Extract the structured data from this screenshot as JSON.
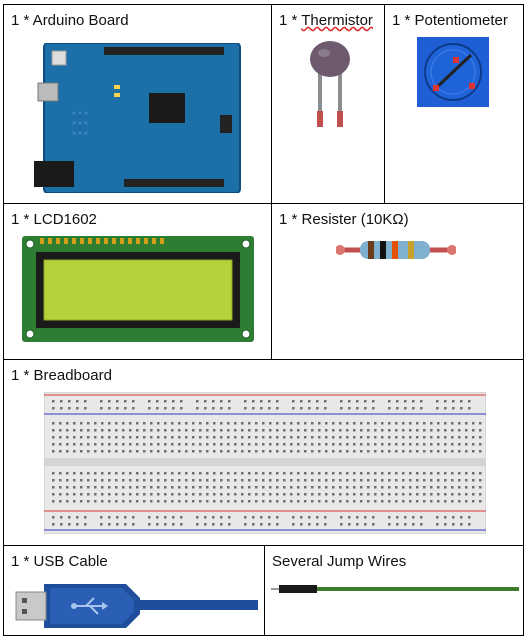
{
  "components": {
    "arduino": {
      "label": "1 * Arduino Board"
    },
    "thermistor": {
      "label": "1 * Thermistor"
    },
    "potentiometer": {
      "label": "1 * Potentiometer"
    },
    "lcd": {
      "label": "1 * LCD1602"
    },
    "resistor": {
      "label": "1 * Resister (10KΩ)"
    },
    "breadboard": {
      "label": "1 * Breadboard"
    },
    "usb": {
      "label": "1 * USB Cable"
    },
    "wires": {
      "label": "Several Jump Wires"
    }
  },
  "colors": {
    "board_blue": "#1d6fa8",
    "lcd_green": "#2e7d32",
    "lcd_screen": "#b5d23a",
    "usb_blue": "#1f4e9c",
    "wire_green": "#3b7d2a"
  }
}
